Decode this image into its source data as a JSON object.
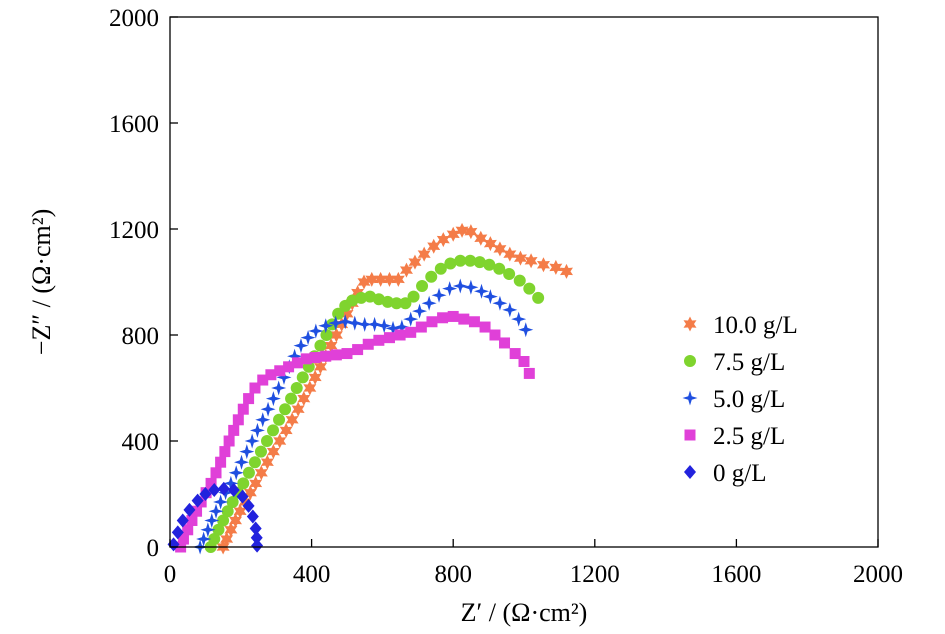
{
  "chart_data": {
    "type": "scatter",
    "xlabel": "Z′ / (Ω·cm²)",
    "ylabel": "−Z″ / (Ω·cm²)",
    "xlim": [
      0,
      2000
    ],
    "ylim": [
      0,
      2000
    ],
    "xticks": [
      "0",
      "400",
      "800",
      "1200",
      "1600",
      "2000"
    ],
    "yticks": [
      "0",
      "400",
      "800",
      "1200",
      "1600",
      "2000"
    ],
    "grid": false,
    "legend_position": "right",
    "series": [
      {
        "name": "10.0 g/L",
        "marker": "star6",
        "color": "#f47c48",
        "points": [
          [
            150,
            0
          ],
          [
            160,
            30
          ],
          [
            172,
            65
          ],
          [
            185,
            100
          ],
          [
            198,
            135
          ],
          [
            212,
            170
          ],
          [
            227,
            205
          ],
          [
            242,
            240
          ],
          [
            258,
            280
          ],
          [
            275,
            320
          ],
          [
            292,
            360
          ],
          [
            310,
            400
          ],
          [
            328,
            440
          ],
          [
            345,
            480
          ],
          [
            362,
            520
          ],
          [
            378,
            560
          ],
          [
            395,
            600
          ],
          [
            410,
            640
          ],
          [
            425,
            680
          ],
          [
            440,
            720
          ],
          [
            455,
            760
          ],
          [
            470,
            800
          ],
          [
            485,
            840
          ],
          [
            500,
            880
          ],
          [
            515,
            920
          ],
          [
            530,
            960
          ],
          [
            548,
            1000
          ],
          [
            570,
            1010
          ],
          [
            595,
            1010
          ],
          [
            620,
            1010
          ],
          [
            645,
            1010
          ],
          [
            668,
            1045
          ],
          [
            692,
            1075
          ],
          [
            718,
            1105
          ],
          [
            745,
            1135
          ],
          [
            772,
            1160
          ],
          [
            800,
            1180
          ],
          [
            825,
            1195
          ],
          [
            850,
            1190
          ],
          [
            878,
            1165
          ],
          [
            905,
            1145
          ],
          [
            932,
            1125
          ],
          [
            960,
            1105
          ],
          [
            990,
            1090
          ],
          [
            1020,
            1080
          ],
          [
            1055,
            1065
          ],
          [
            1090,
            1055
          ],
          [
            1120,
            1040
          ]
        ]
      },
      {
        "name": "7.5 g/L",
        "marker": "circle",
        "color": "#7fd42e",
        "points": [
          [
            115,
            0
          ],
          [
            125,
            30
          ],
          [
            137,
            65
          ],
          [
            150,
            100
          ],
          [
            163,
            135
          ],
          [
            177,
            170
          ],
          [
            192,
            205
          ],
          [
            207,
            240
          ],
          [
            223,
            280
          ],
          [
            240,
            320
          ],
          [
            257,
            360
          ],
          [
            274,
            400
          ],
          [
            291,
            440
          ],
          [
            308,
            480
          ],
          [
            325,
            520
          ],
          [
            342,
            560
          ],
          [
            358,
            600
          ],
          [
            375,
            640
          ],
          [
            392,
            680
          ],
          [
            408,
            720
          ],
          [
            425,
            760
          ],
          [
            442,
            800
          ],
          [
            458,
            840
          ],
          [
            475,
            880
          ],
          [
            495,
            910
          ],
          [
            515,
            930
          ],
          [
            540,
            940
          ],
          [
            565,
            945
          ],
          [
            590,
            935
          ],
          [
            615,
            925
          ],
          [
            640,
            920
          ],
          [
            665,
            920
          ],
          [
            688,
            945
          ],
          [
            712,
            985
          ],
          [
            738,
            1020
          ],
          [
            765,
            1050
          ],
          [
            792,
            1070
          ],
          [
            820,
            1080
          ],
          [
            848,
            1080
          ],
          [
            875,
            1075
          ],
          [
            902,
            1065
          ],
          [
            930,
            1050
          ],
          [
            958,
            1030
          ],
          [
            988,
            1005
          ],
          [
            1015,
            975
          ],
          [
            1040,
            940
          ]
        ]
      },
      {
        "name": "5.0 g/L",
        "marker": "star4",
        "color": "#1f4fe0",
        "points": [
          [
            85,
            0
          ],
          [
            95,
            30
          ],
          [
            107,
            65
          ],
          [
            118,
            100
          ],
          [
            130,
            135
          ],
          [
            143,
            170
          ],
          [
            157,
            205
          ],
          [
            172,
            240
          ],
          [
            187,
            280
          ],
          [
            202,
            320
          ],
          [
            217,
            360
          ],
          [
            232,
            400
          ],
          [
            247,
            440
          ],
          [
            262,
            480
          ],
          [
            277,
            520
          ],
          [
            292,
            560
          ],
          [
            307,
            600
          ],
          [
            322,
            640
          ],
          [
            337,
            680
          ],
          [
            352,
            720
          ],
          [
            370,
            760
          ],
          [
            390,
            790
          ],
          [
            412,
            815
          ],
          [
            440,
            835
          ],
          [
            468,
            845
          ],
          [
            495,
            850
          ],
          [
            522,
            845
          ],
          [
            550,
            840
          ],
          [
            578,
            840
          ],
          [
            605,
            835
          ],
          [
            630,
            825
          ],
          [
            655,
            830
          ],
          [
            680,
            860
          ],
          [
            705,
            890
          ],
          [
            732,
            920
          ],
          [
            760,
            950
          ],
          [
            790,
            975
          ],
          [
            820,
            985
          ],
          [
            850,
            980
          ],
          [
            880,
            965
          ],
          [
            905,
            945
          ],
          [
            932,
            920
          ],
          [
            960,
            895
          ],
          [
            985,
            860
          ],
          [
            1005,
            820
          ]
        ]
      },
      {
        "name": "2.5 g/L",
        "marker": "square",
        "color": "#e040d8",
        "points": [
          [
            30,
            0
          ],
          [
            38,
            30
          ],
          [
            50,
            65
          ],
          [
            62,
            100
          ],
          [
            75,
            135
          ],
          [
            88,
            170
          ],
          [
            102,
            205
          ],
          [
            116,
            240
          ],
          [
            130,
            280
          ],
          [
            143,
            320
          ],
          [
            155,
            360
          ],
          [
            167,
            400
          ],
          [
            180,
            440
          ],
          [
            193,
            480
          ],
          [
            207,
            520
          ],
          [
            222,
            560
          ],
          [
            240,
            600
          ],
          [
            262,
            630
          ],
          [
            285,
            650
          ],
          [
            310,
            665
          ],
          [
            335,
            680
          ],
          [
            360,
            695
          ],
          [
            385,
            710
          ],
          [
            410,
            715
          ],
          [
            440,
            720
          ],
          [
            470,
            725
          ],
          [
            500,
            730
          ],
          [
            530,
            745
          ],
          [
            560,
            765
          ],
          [
            590,
            780
          ],
          [
            620,
            790
          ],
          [
            650,
            800
          ],
          [
            680,
            810
          ],
          [
            710,
            830
          ],
          [
            740,
            850
          ],
          [
            770,
            865
          ],
          [
            800,
            870
          ],
          [
            830,
            860
          ],
          [
            860,
            850
          ],
          [
            890,
            830
          ],
          [
            918,
            800
          ],
          [
            945,
            770
          ],
          [
            975,
            730
          ],
          [
            1000,
            700
          ],
          [
            1015,
            655
          ]
        ]
      },
      {
        "name": "0 g/L",
        "marker": "diamond",
        "color": "#2222dd",
        "points": [
          [
            10,
            10
          ],
          [
            22,
            55
          ],
          [
            36,
            100
          ],
          [
            55,
            140
          ],
          [
            78,
            175
          ],
          [
            100,
            200
          ],
          [
            125,
            215
          ],
          [
            152,
            220
          ],
          [
            180,
            215
          ],
          [
            205,
            190
          ],
          [
            222,
            155
          ],
          [
            234,
            115
          ],
          [
            242,
            70
          ],
          [
            245,
            35
          ],
          [
            246,
            5
          ]
        ]
      }
    ]
  }
}
